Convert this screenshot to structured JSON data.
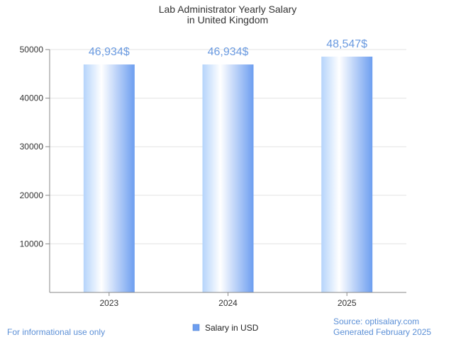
{
  "chart_data": {
    "type": "bar",
    "title_lines": [
      "Lab Administrator Yearly Salary",
      "in United Kingdom"
    ],
    "categories": [
      "2023",
      "2024",
      "2025"
    ],
    "series": [
      {
        "name": "Salary in USD",
        "values": [
          46934,
          46934,
          48547
        ]
      }
    ],
    "data_labels": [
      "46,934$",
      "46,934$",
      "48,547$"
    ],
    "y_ticks": [
      "10000",
      "20000",
      "30000",
      "40000",
      "50000"
    ],
    "ylim": [
      0,
      50000
    ],
    "grid": true,
    "legend_position": "bottom",
    "colors": {
      "bar_light": "#ffffff",
      "bar_mid": "#b5d4fb",
      "bar_dark": "#6d9ef0",
      "legend_swatch": "#6d9ef0"
    }
  },
  "footer": {
    "left_note": "For informational use only",
    "source": "Source: optisalary.com",
    "generated": "Generated February 2025"
  }
}
